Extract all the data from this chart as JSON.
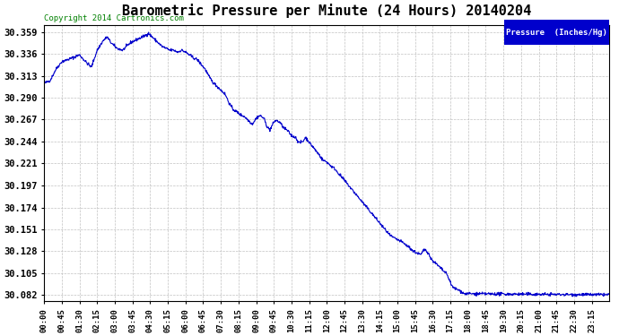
{
  "title": "Barometric Pressure per Minute (24 Hours) 20140204",
  "copyright": "Copyright 2014 Cartronics.com",
  "legend_label": "Pressure  (Inches/Hg)",
  "line_color": "#0000cc",
  "background_color": "#ffffff",
  "grid_color": "#bbbbbb",
  "yticks": [
    30.082,
    30.105,
    30.128,
    30.151,
    30.174,
    30.197,
    30.221,
    30.244,
    30.267,
    30.29,
    30.313,
    30.336,
    30.359
  ],
  "ylim": [
    30.075,
    30.366
  ],
  "xtick_labels": [
    "00:00",
    "00:45",
    "01:30",
    "02:15",
    "03:00",
    "03:45",
    "04:30",
    "05:15",
    "06:00",
    "06:45",
    "07:30",
    "08:15",
    "09:00",
    "09:45",
    "10:30",
    "11:15",
    "12:00",
    "12:45",
    "13:30",
    "14:15",
    "15:00",
    "15:45",
    "16:30",
    "17:15",
    "18:00",
    "18:45",
    "19:30",
    "20:15",
    "21:00",
    "21:45",
    "22:30",
    "23:15"
  ],
  "pressure_keypoints": [
    [
      0,
      30.305
    ],
    [
      15,
      30.308
    ],
    [
      30,
      30.32
    ],
    [
      45,
      30.328
    ],
    [
      60,
      30.33
    ],
    [
      90,
      30.335
    ],
    [
      105,
      30.328
    ],
    [
      120,
      30.322
    ],
    [
      135,
      30.34
    ],
    [
      150,
      30.35
    ],
    [
      160,
      30.354
    ],
    [
      170,
      30.348
    ],
    [
      185,
      30.342
    ],
    [
      200,
      30.34
    ],
    [
      210,
      30.344
    ],
    [
      220,
      30.348
    ],
    [
      230,
      30.35
    ],
    [
      240,
      30.352
    ],
    [
      250,
      30.354
    ],
    [
      260,
      30.356
    ],
    [
      265,
      30.358
    ],
    [
      270,
      30.356
    ],
    [
      280,
      30.352
    ],
    [
      290,
      30.348
    ],
    [
      300,
      30.344
    ],
    [
      310,
      30.342
    ],
    [
      320,
      30.34
    ],
    [
      330,
      30.34
    ],
    [
      340,
      30.338
    ],
    [
      350,
      30.34
    ],
    [
      360,
      30.338
    ],
    [
      370,
      30.335
    ],
    [
      380,
      30.332
    ],
    [
      390,
      30.33
    ],
    [
      400,
      30.325
    ],
    [
      410,
      30.32
    ],
    [
      420,
      30.312
    ],
    [
      430,
      30.306
    ],
    [
      440,
      30.302
    ],
    [
      450,
      30.298
    ],
    [
      460,
      30.294
    ],
    [
      465,
      30.29
    ],
    [
      470,
      30.285
    ],
    [
      480,
      30.278
    ],
    [
      490,
      30.275
    ],
    [
      500,
      30.272
    ],
    [
      510,
      30.27
    ],
    [
      515,
      30.268
    ],
    [
      520,
      30.266
    ],
    [
      525,
      30.264
    ],
    [
      530,
      30.262
    ],
    [
      540,
      30.268
    ],
    [
      545,
      30.27
    ],
    [
      550,
      30.271
    ],
    [
      560,
      30.268
    ],
    [
      565,
      30.262
    ],
    [
      570,
      30.258
    ],
    [
      575,
      30.256
    ],
    [
      580,
      30.26
    ],
    [
      585,
      30.264
    ],
    [
      590,
      30.266
    ],
    [
      600,
      30.264
    ],
    [
      610,
      30.258
    ],
    [
      620,
      30.255
    ],
    [
      630,
      30.25
    ],
    [
      640,
      30.248
    ],
    [
      645,
      30.245
    ],
    [
      650,
      30.242
    ],
    [
      660,
      30.244
    ],
    [
      665,
      30.248
    ],
    [
      670,
      30.246
    ],
    [
      680,
      30.24
    ],
    [
      685,
      30.238
    ],
    [
      690,
      30.235
    ],
    [
      700,
      30.23
    ],
    [
      710,
      30.224
    ],
    [
      720,
      30.222
    ],
    [
      730,
      30.218
    ],
    [
      740,
      30.215
    ],
    [
      750,
      30.21
    ],
    [
      760,
      30.205
    ],
    [
      770,
      30.2
    ],
    [
      780,
      30.195
    ],
    [
      790,
      30.19
    ],
    [
      800,
      30.185
    ],
    [
      810,
      30.18
    ],
    [
      820,
      30.175
    ],
    [
      830,
      30.17
    ],
    [
      840,
      30.165
    ],
    [
      850,
      30.16
    ],
    [
      860,
      30.155
    ],
    [
      870,
      30.15
    ],
    [
      880,
      30.145
    ],
    [
      890,
      30.142
    ],
    [
      900,
      30.14
    ],
    [
      910,
      30.138
    ],
    [
      920,
      30.135
    ],
    [
      930,
      30.132
    ],
    [
      935,
      30.13
    ],
    [
      940,
      30.128
    ],
    [
      950,
      30.126
    ],
    [
      960,
      30.124
    ],
    [
      965,
      30.128
    ],
    [
      970,
      30.13
    ],
    [
      975,
      30.128
    ],
    [
      980,
      30.125
    ],
    [
      985,
      30.12
    ],
    [
      990,
      30.118
    ],
    [
      995,
      30.116
    ],
    [
      1000,
      30.114
    ],
    [
      1005,
      30.112
    ],
    [
      1010,
      30.11
    ],
    [
      1015,
      30.108
    ],
    [
      1020,
      30.106
    ],
    [
      1025,
      30.104
    ],
    [
      1030,
      30.1
    ],
    [
      1035,
      30.095
    ],
    [
      1040,
      30.09
    ],
    [
      1050,
      30.088
    ],
    [
      1060,
      30.086
    ],
    [
      1070,
      30.083
    ],
    [
      1395,
      30.082
    ]
  ]
}
